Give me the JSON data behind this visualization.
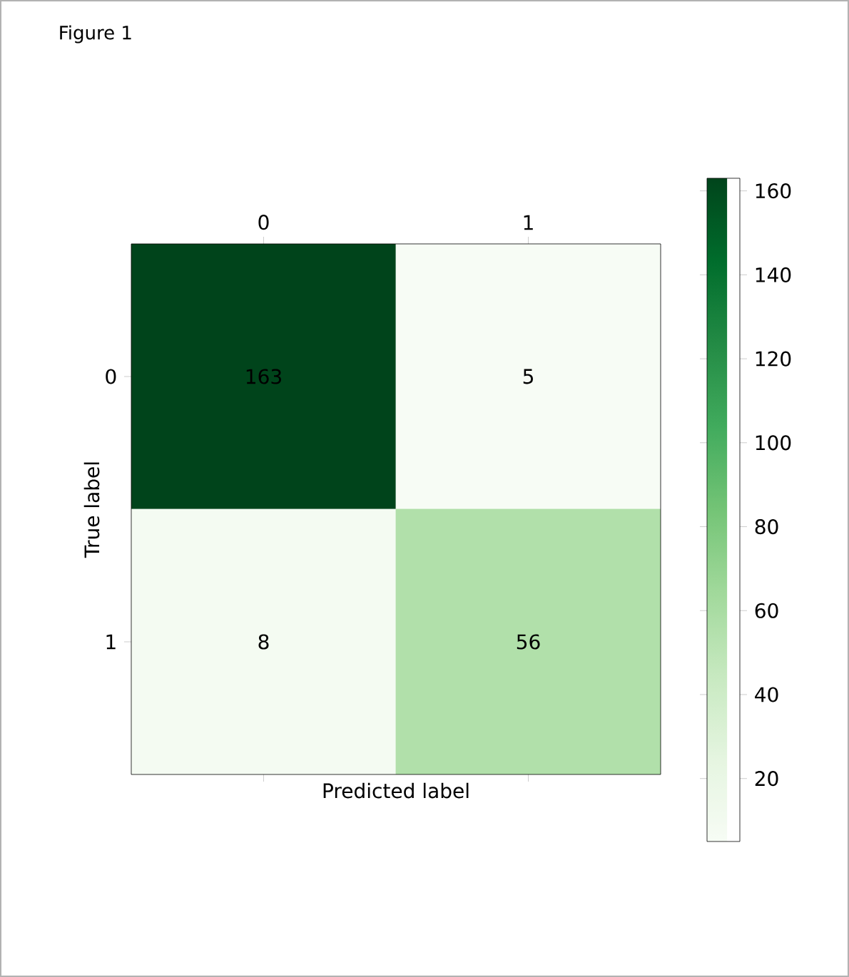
{
  "chart_data": {
    "type": "heatmap",
    "annotations": [
      "Figure 1"
    ],
    "xlabel": "Predicted label",
    "ylabel": "True label",
    "categories": [
      "0",
      "1"
    ],
    "y_categories": [
      "0",
      "1"
    ],
    "cells": [
      [
        163,
        5
      ],
      [
        8,
        56
      ]
    ],
    "data_labels": true,
    "clim": [
      5,
      163
    ],
    "cticks": [
      20,
      40,
      60,
      80,
      100,
      120,
      140,
      160
    ]
  }
}
